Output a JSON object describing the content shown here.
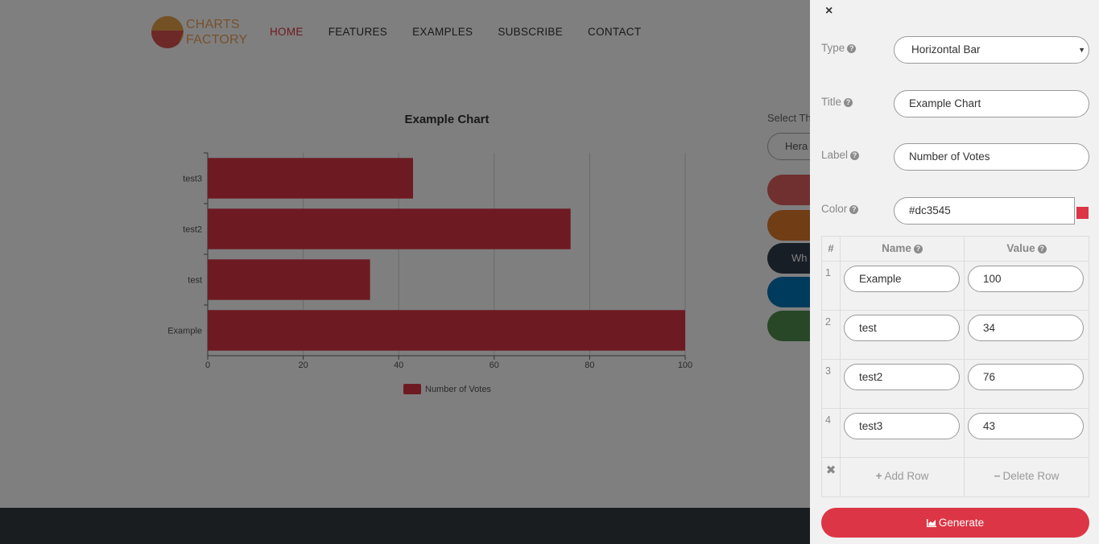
{
  "brand": {
    "line1": "CHARTS",
    "line2": "FACTORY"
  },
  "nav": [
    {
      "label": "HOME",
      "active": true
    },
    {
      "label": "FEATURES",
      "active": false
    },
    {
      "label": "EXAMPLES",
      "active": false
    },
    {
      "label": "SUBSCRIBE",
      "active": false
    },
    {
      "label": "CONTACT",
      "active": false
    }
  ],
  "chart_data": {
    "type": "bar",
    "orientation": "horizontal",
    "title": "Example Chart",
    "categories": [
      "Example",
      "test",
      "test2",
      "test3"
    ],
    "series": [
      {
        "name": "Number of Votes",
        "values": [
          100,
          34,
          76,
          43
        ],
        "color": "#dc3545"
      }
    ],
    "xlim": [
      0,
      100
    ],
    "xticks": [
      0,
      20,
      40,
      60,
      80,
      100
    ],
    "grid": true,
    "legend": "bottom"
  },
  "theme": {
    "label": "Select Th",
    "selected": "Hera",
    "pills": [
      {
        "label": "",
        "color": "#e06060"
      },
      {
        "label": "",
        "color": "#e07b2a"
      },
      {
        "label": "Wh",
        "color": "#2f3d4a"
      },
      {
        "label": "",
        "color": "#0074b8"
      },
      {
        "label": "",
        "color": "#4e8f4e"
      }
    ]
  },
  "panel": {
    "close": "×",
    "type_label": "Type",
    "type_value": "Horizontal Bar",
    "title_label": "Title",
    "title_value": "Example Chart",
    "label_label": "Label",
    "label_value": "Number of Votes",
    "color_label": "Color",
    "color_value": "#dc3545",
    "help": "?",
    "grid_headers": {
      "num": "#",
      "name": "Name",
      "value": "Value"
    },
    "rows": [
      {
        "num": "1",
        "name": "Example",
        "value": "100"
      },
      {
        "num": "2",
        "name": "test",
        "value": "34"
      },
      {
        "num": "3",
        "name": "test2",
        "value": "76"
      },
      {
        "num": "4",
        "name": "test3",
        "value": "43"
      }
    ],
    "add_row": "Add Row",
    "delete_row": "Delete Row",
    "generate": "Generate"
  }
}
